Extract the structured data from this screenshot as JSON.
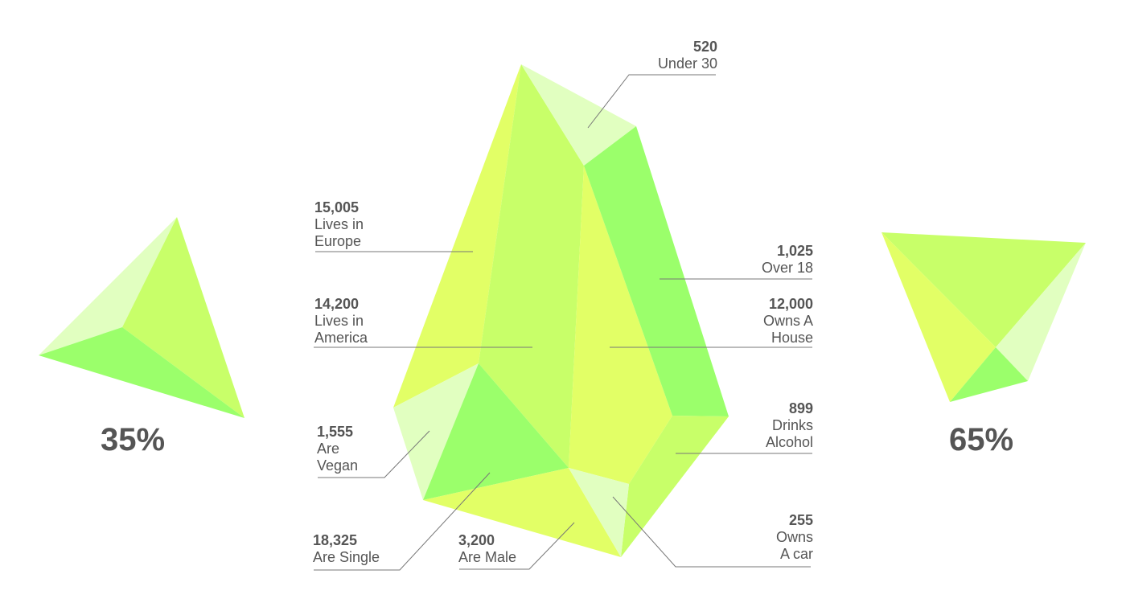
{
  "colors": {
    "pale": "#e1ffc0",
    "lime": "#c8ff69",
    "yellow": "#e2ff66",
    "green": "#9bff6b",
    "text": "#555555",
    "leader": "#777777"
  },
  "left_gem": {
    "percent": "35%"
  },
  "right_gem": {
    "percent": "65%"
  },
  "callouts": [
    {
      "id": "under-30",
      "number": "520",
      "text": "Under 30"
    },
    {
      "id": "lives-in-europe",
      "number": "15,005",
      "text": "Lives in\nEurope"
    },
    {
      "id": "over-18",
      "number": "1,025",
      "text": "Over 18"
    },
    {
      "id": "lives-in-america",
      "number": "14,200",
      "text": "Lives in\nAmerica"
    },
    {
      "id": "owns-a-house",
      "number": "12,000",
      "text": "Owns A\nHouse"
    },
    {
      "id": "are-vegan",
      "number": "1,555",
      "text": "Are\nVegan"
    },
    {
      "id": "drinks-alcohol",
      "number": "899",
      "text": "Drinks\nAlcohol"
    },
    {
      "id": "are-single",
      "number": "18,325",
      "text": "Are Single"
    },
    {
      "id": "are-male",
      "number": "3,200",
      "text": "Are Male"
    },
    {
      "id": "owns-a-car",
      "number": "255",
      "text": "Owns\nA car"
    }
  ]
}
